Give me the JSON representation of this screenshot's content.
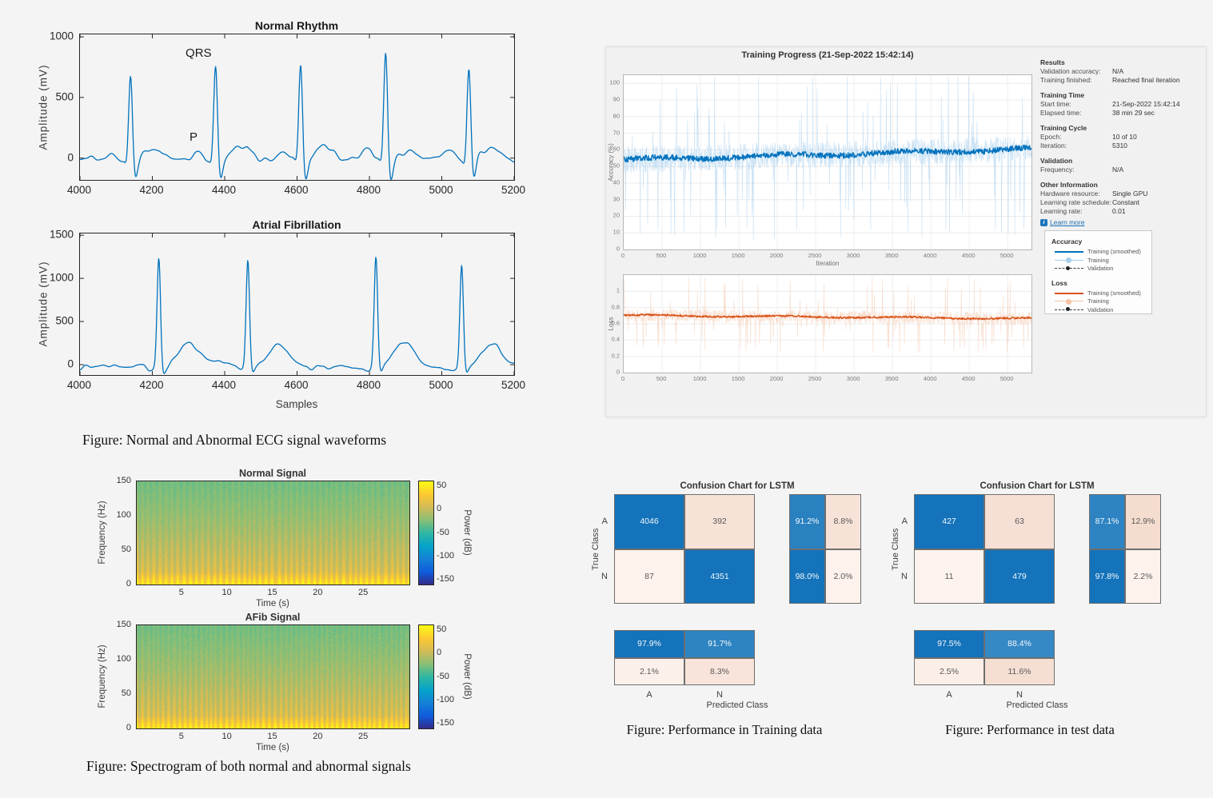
{
  "captions": {
    "ecg": "Figure: Normal and Abnormal ECG signal waveforms",
    "spectrogram": "Figure: Spectrogram of both normal and abnormal signals",
    "confusion_train": "Figure: Performance in Training data",
    "confusion_test": "Figure: Performance in test data"
  },
  "colors": {
    "matlab_blue": "#0072BD",
    "matlab_blue_raw": "#8fc1e8",
    "matlab_orange": "#D95319",
    "matlab_orange_raw": "#f2b897",
    "confusion_blue": "#1473ba",
    "confusion_blue_light": "#3589c5",
    "grid": "#ececec",
    "link_blue": "#1b6fb5"
  },
  "chart_data": [
    {
      "id": "normal_rhythm",
      "type": "line",
      "title": "Normal Rhythm",
      "xlabel": "",
      "ylabel": "Amplitude (mV)",
      "xlim": [
        4000,
        5200
      ],
      "ylim": [
        -180,
        1020
      ],
      "xticks": [
        4000,
        4200,
        4400,
        4600,
        4800,
        5000,
        5200
      ],
      "yticks": [
        0,
        500,
        1000
      ],
      "line_color": "#0072BD",
      "seed": 11,
      "beats": [
        {
          "x": 4140,
          "r": 730
        },
        {
          "x": 4375,
          "r": 790
        },
        {
          "x": 4610,
          "r": 810
        },
        {
          "x": 4845,
          "r": 890
        },
        {
          "x": 5075,
          "r": 780
        }
      ],
      "annotations": [
        {
          "text": "QRS",
          "x": 4330,
          "y": 800
        },
        {
          "text": "P",
          "x": 4316,
          "y": 110
        }
      ]
    },
    {
      "id": "afib",
      "type": "line",
      "title": "Atrial Fibrillation",
      "xlabel": "Samples",
      "ylabel": "Amplitude (mV)",
      "xlim": [
        4000,
        5200
      ],
      "ylim": [
        -120,
        1520
      ],
      "xticks": [
        4000,
        4200,
        4400,
        4600,
        4800,
        5000,
        5200
      ],
      "yticks": [
        0,
        500,
        1000,
        1500
      ],
      "line_color": "#0072BD",
      "seed": 29,
      "beats": [
        {
          "x": 4218,
          "r": 1300
        },
        {
          "x": 4464,
          "r": 1270
        },
        {
          "x": 4818,
          "r": 1270
        },
        {
          "x": 5055,
          "r": 1190
        }
      ],
      "annotations": []
    },
    {
      "id": "training_accuracy",
      "type": "line",
      "title": "Training Progress (21-Sep-2022 15:42:14)",
      "xlabel": "Iteration",
      "ylabel": "Accuracy (%)",
      "xlim": [
        0,
        5310
      ],
      "ylim": [
        0,
        105
      ],
      "xticks": [
        0,
        500,
        1000,
        1500,
        2000,
        2500,
        3000,
        3500,
        4000,
        4500,
        5000
      ],
      "yticks": [
        0,
        10,
        20,
        30,
        40,
        50,
        60,
        70,
        80,
        90,
        100
      ],
      "seed": 5,
      "smoothed": {
        "start": 54,
        "end": 60.5
      },
      "raw_jitter": 16,
      "spike_p": 0.055,
      "spike_down": 40,
      "spike_up": 44,
      "clamp": [
        1,
        104
      ],
      "wave": 0.9,
      "smooth_jitter": 3.4
    },
    {
      "id": "training_loss",
      "type": "line",
      "title": "",
      "xlabel": "",
      "ylabel": "Loss",
      "xlim": [
        0,
        5310
      ],
      "ylim": [
        0,
        1.2
      ],
      "xticks": [
        0,
        500,
        1000,
        1500,
        2000,
        2500,
        3000,
        3500,
        4000,
        4500,
        5000
      ],
      "yticks": [
        0,
        0.2,
        0.4,
        0.6,
        0.8,
        1
      ],
      "seed": 17,
      "smoothed": {
        "start": 0.705,
        "end": 0.665
      },
      "raw_jitter": 0.16,
      "spike_p": 0.05,
      "spike_down": 0.34,
      "spike_up": 0.4,
      "clamp": [
        0.02,
        1.18
      ],
      "wave": 0.008,
      "smooth_jitter": 0.022,
      "start_spike": 1.16
    },
    {
      "id": "spect_normal",
      "type": "heatmap",
      "title": "Normal Signal",
      "xlabel": "Time (s)",
      "ylabel": "Frequency (Hz)",
      "xlim": [
        0,
        30
      ],
      "ylim": [
        0,
        150
      ],
      "xticks": [
        5,
        10,
        15,
        20,
        25
      ],
      "yticks": [
        0,
        50,
        100,
        150
      ],
      "colormap": "parula",
      "seed": 7,
      "stripe_freq": 0.85,
      "colorbar": {
        "label": "Power (dB)",
        "ticks": [
          50,
          0,
          -50,
          -100,
          -150
        ],
        "range": [
          -160,
          60
        ]
      }
    },
    {
      "id": "spect_afib",
      "type": "heatmap",
      "title": "AFib Signal",
      "xlabel": "Time (s)",
      "ylabel": "Frequency (Hz)",
      "xlim": [
        0,
        30
      ],
      "ylim": [
        0,
        150
      ],
      "xticks": [
        5,
        10,
        15,
        20,
        25
      ],
      "yticks": [
        0,
        50,
        100,
        150
      ],
      "colormap": "parula",
      "seed": 13,
      "stripe_freq": 0.95,
      "colorbar": {
        "label": "Power (dB)",
        "ticks": [
          50,
          0,
          -50,
          -100,
          -150
        ],
        "range": [
          -160,
          60
        ]
      }
    },
    {
      "id": "confusion_train",
      "type": "confusion",
      "title": "Confusion Chart for LSTM",
      "xlabel": "Predicted Class",
      "ylabel": "True Class",
      "classes": [
        "A",
        "N"
      ],
      "matrix": [
        [
          4046,
          392
        ],
        [
          87,
          4351
        ]
      ],
      "row_summary": [
        [
          "91.2%",
          "8.8%"
        ],
        [
          "98.0%",
          "2.0%"
        ]
      ],
      "col_summary": [
        [
          "97.9%",
          "91.7%"
        ],
        [
          "2.1%",
          "8.3%"
        ]
      ],
      "cell_colors": {
        "matrix": [
          [
            "#1473ba",
            "#f7e2d8"
          ],
          [
            "#fdf2ec",
            "#1473ba"
          ]
        ],
        "row": [
          [
            "#2a81c0",
            "#f7e2d8"
          ],
          [
            "#1473ba",
            "#fdf2ec"
          ]
        ],
        "col": [
          [
            "#1473ba",
            "#2e84c2"
          ],
          [
            "#fcf0ea",
            "#f8e4da"
          ]
        ]
      }
    },
    {
      "id": "confusion_test",
      "type": "confusion",
      "title": "Confusion Chart for LSTM",
      "xlabel": "Predicted Class",
      "ylabel": "True Class",
      "classes": [
        "A",
        "N"
      ],
      "matrix": [
        [
          427,
          63
        ],
        [
          11,
          479
        ]
      ],
      "row_summary": [
        [
          "87.1%",
          "12.9%"
        ],
        [
          "97.8%",
          "2.2%"
        ]
      ],
      "col_summary": [
        [
          "97.5%",
          "88.4%"
        ],
        [
          "2.5%",
          "11.6%"
        ]
      ],
      "cell_colors": {
        "matrix": [
          [
            "#1473ba",
            "#f6e0d5"
          ],
          [
            "#fdf3ee",
            "#1473ba"
          ]
        ],
        "row": [
          [
            "#2e84c2",
            "#f4dcce"
          ],
          [
            "#1473ba",
            "#fdf2ec"
          ]
        ],
        "col": [
          [
            "#1473ba",
            "#3589c5"
          ],
          [
            "#fbeee7",
            "#f5ded2"
          ]
        ]
      }
    }
  ],
  "training_window": {
    "title": "Training Progress (21-Sep-2022 15:42:14)",
    "panel": {
      "sections": [
        {
          "heading": "Results",
          "rows": [
            [
              "Validation accuracy:",
              "N/A"
            ],
            [
              "Training finished:",
              "Reached final iteration"
            ]
          ]
        },
        {
          "heading": "Training Time",
          "rows": [
            [
              "Start time:",
              "21-Sep-2022 15:42:14"
            ],
            [
              "Elapsed time:",
              "38 min 29 sec"
            ]
          ]
        },
        {
          "heading": "Training Cycle",
          "rows": [
            [
              "Epoch:",
              "10 of 10"
            ],
            [
              "Iteration:",
              "5310"
            ]
          ]
        },
        {
          "heading": "Validation",
          "rows": [
            [
              "Frequency:",
              "N/A"
            ]
          ]
        },
        {
          "heading": "Other Information",
          "rows": [
            [
              "Hardware resource:",
              "Single GPU"
            ],
            [
              "Learning rate schedule:",
              "Constant"
            ],
            [
              "Learning rate:",
              "0.01"
            ]
          ]
        }
      ],
      "learn_more": "Learn more"
    },
    "legend": {
      "groups": [
        {
          "title": "Accuracy",
          "items": [
            {
              "label": "Training (smoothed)",
              "style": "solid",
              "color": "#0072BD"
            },
            {
              "label": "Training",
              "style": "marker",
              "color": "#a6cfec"
            },
            {
              "label": "Validation",
              "style": "dashed",
              "color": "#3a3a3a"
            }
          ]
        },
        {
          "title": "Loss",
          "items": [
            {
              "label": "Training (smoothed)",
              "style": "solid",
              "color": "#D95319"
            },
            {
              "label": "Training",
              "style": "marker",
              "color": "#f5c3a6"
            },
            {
              "label": "Validation",
              "style": "dashed",
              "color": "#3a3a3a"
            }
          ]
        }
      ]
    }
  }
}
